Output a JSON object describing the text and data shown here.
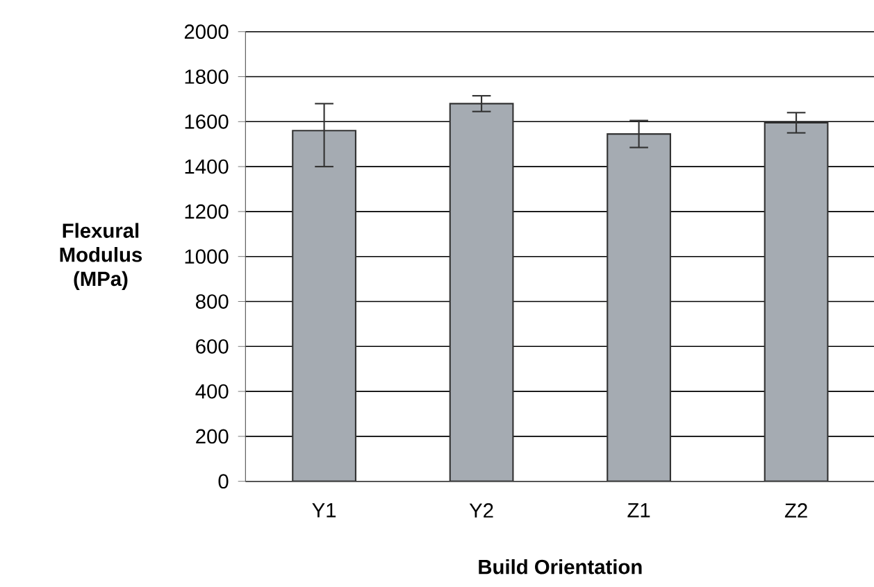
{
  "chart_data": {
    "type": "bar",
    "xlabel": "Build Orientation",
    "ylabel": "Flexural Modulus (MPa)",
    "categories": [
      "Y1",
      "Y2",
      "Z1",
      "Z2"
    ],
    "values": [
      1560,
      1680,
      1545,
      1595
    ],
    "errors": [
      [
        1400,
        1680
      ],
      35,
      60,
      45
    ],
    "color": "#a5abb2",
    "ylim": [
      0,
      2000
    ],
    "yticks": [
      0,
      200,
      400,
      600,
      800,
      1000,
      1200,
      1400,
      1600,
      1800,
      2000
    ],
    "grid": "y"
  }
}
